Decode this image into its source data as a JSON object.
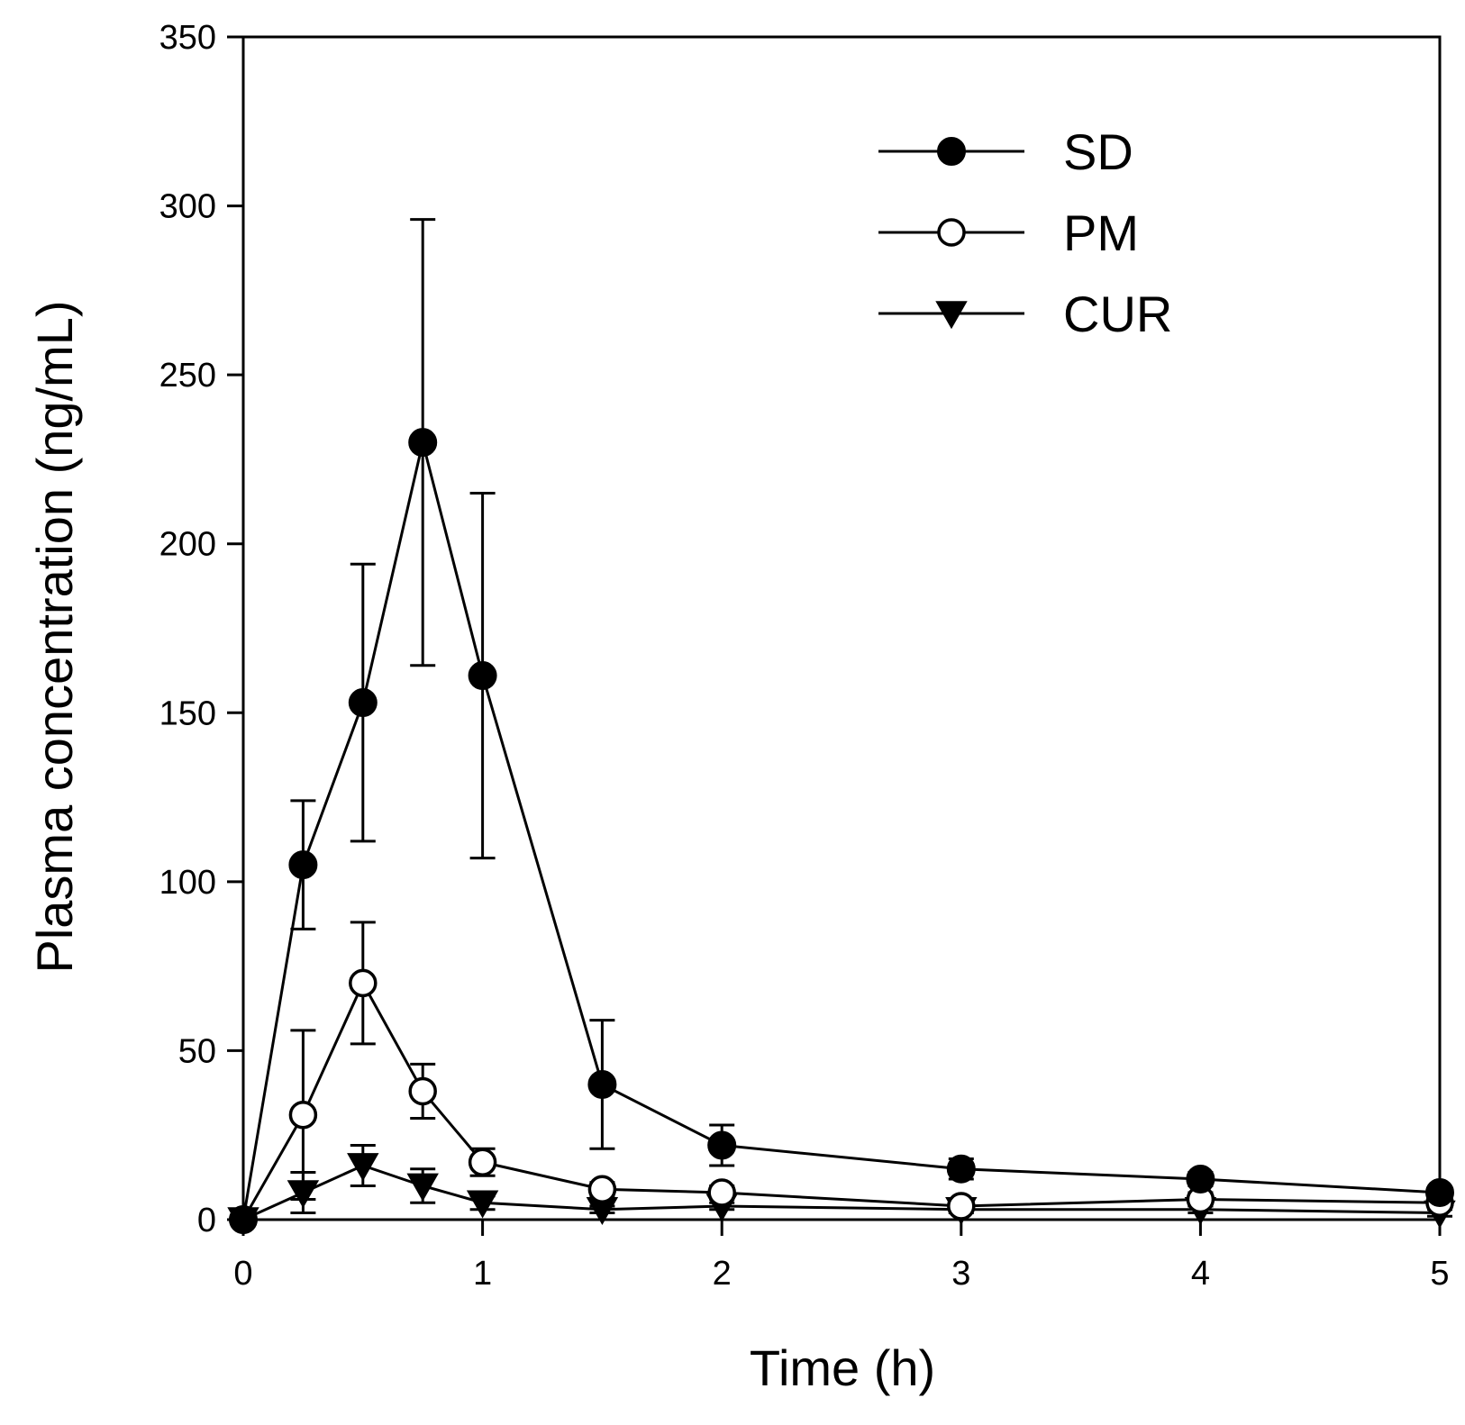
{
  "chart_data": {
    "type": "line",
    "title": "",
    "xlabel": "Time (h)",
    "ylabel": "Plasma concentration (ng/mL)",
    "xlim": [
      0,
      5
    ],
    "ylim": [
      0,
      350
    ],
    "x_ticks": [
      "0",
      "1",
      "2",
      "3",
      "4",
      "5"
    ],
    "y_ticks": [
      "0",
      "50",
      "100",
      "150",
      "200",
      "250",
      "300",
      "350"
    ],
    "grid": false,
    "legend_position": "top-right",
    "x": [
      0,
      0.25,
      0.5,
      0.75,
      1,
      1.5,
      2,
      3,
      4,
      5
    ],
    "series": [
      {
        "name": "SD",
        "marker": "filled-circle",
        "values": [
          0,
          105,
          153,
          230,
          161,
          40,
          22,
          15,
          12,
          8
        ],
        "errors": [
          0,
          19,
          41,
          66,
          54,
          19,
          6,
          3,
          2,
          1
        ]
      },
      {
        "name": "PM",
        "marker": "open-circle",
        "values": [
          0,
          31,
          70,
          38,
          17,
          9,
          8,
          4,
          6,
          5
        ],
        "errors": [
          0,
          25,
          18,
          8,
          4,
          2,
          2,
          1,
          2,
          1
        ]
      },
      {
        "name": "CUR",
        "marker": "filled-triangle-down",
        "values": [
          0,
          8,
          16,
          10,
          5,
          3,
          4,
          3,
          3,
          2
        ],
        "errors": [
          0,
          6,
          6,
          5,
          2,
          1,
          1,
          1,
          1,
          1
        ]
      }
    ]
  }
}
